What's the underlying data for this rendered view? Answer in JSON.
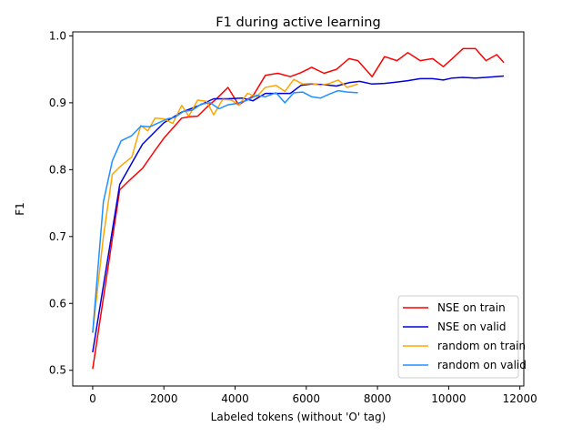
{
  "chart_data": {
    "type": "line",
    "title": "F1 during active learning",
    "xlabel": "Labeled tokens (without 'O' tag)",
    "ylabel": "F1",
    "xlim": [
      -560,
      12110
    ],
    "ylim": [
      0.4765,
      1.006
    ],
    "xticks": [
      0,
      2000,
      4000,
      6000,
      8000,
      10000,
      12000
    ],
    "xtick_labels": [
      "0",
      "2000",
      "4000",
      "6000",
      "8000",
      "10000",
      "12000"
    ],
    "yticks": [
      0.5,
      0.6,
      0.7,
      0.8,
      0.9,
      1.0
    ],
    "ytick_labels": [
      "0.5",
      "0.6",
      "0.7",
      "0.8",
      "0.9",
      "1.0"
    ],
    "grid": false,
    "legend_position": "lower-right",
    "series": [
      {
        "name": "NSE on train",
        "color": "#ff0000",
        "x": [
          0,
          760,
          1050,
          1400,
          1700,
          2000,
          2250,
          2500,
          2700,
          2950,
          3200,
          3500,
          3800,
          4100,
          4500,
          4850,
          5200,
          5550,
          5850,
          6150,
          6500,
          6850,
          7200,
          7450,
          7850,
          8200,
          8550,
          8850,
          9200,
          9550,
          9850,
          10100,
          10400,
          10750,
          11050,
          11350,
          11550
        ],
        "y": [
          0.502,
          0.77,
          0.785,
          0.802,
          0.825,
          0.847,
          0.862,
          0.877,
          0.879,
          0.88,
          0.893,
          0.907,
          0.923,
          0.897,
          0.91,
          0.941,
          0.944,
          0.939,
          0.945,
          0.953,
          0.944,
          0.95,
          0.966,
          0.963,
          0.939,
          0.969,
          0.963,
          0.975,
          0.963,
          0.966,
          0.954,
          0.966,
          0.981,
          0.981,
          0.963,
          0.972,
          0.96
        ]
      },
      {
        "name": "NSE on valid",
        "color": "#0000dd",
        "x": [
          0,
          760,
          1400,
          2000,
          2500,
          2950,
          3400,
          3800,
          4200,
          4500,
          4850,
          5200,
          5550,
          5850,
          6150,
          6500,
          6850,
          7200,
          7500,
          7850,
          8200,
          8550,
          8850,
          9200,
          9550,
          9850,
          10100,
          10400,
          10750,
          11050,
          11550
        ],
        "y": [
          0.527,
          0.778,
          0.838,
          0.87,
          0.886,
          0.895,
          0.906,
          0.906,
          0.907,
          0.903,
          0.914,
          0.914,
          0.914,
          0.926,
          0.928,
          0.927,
          0.925,
          0.93,
          0.932,
          0.928,
          0.929,
          0.931,
          0.933,
          0.936,
          0.936,
          0.934,
          0.937,
          0.938,
          0.937,
          0.938,
          0.94
        ]
      },
      {
        "name": "random on train",
        "color": "#ffa500",
        "x": [
          0,
          300,
          550,
          800,
          1100,
          1350,
          1550,
          1750,
          2000,
          2250,
          2500,
          2700,
          2950,
          3200,
          3400,
          3650,
          3900,
          4100,
          4350,
          4600,
          4850,
          5150,
          5400,
          5650,
          5900,
          6150,
          6400,
          6650,
          6900,
          7150,
          7450
        ],
        "y": [
          0.556,
          0.7,
          0.793,
          0.806,
          0.819,
          0.866,
          0.858,
          0.877,
          0.876,
          0.869,
          0.896,
          0.88,
          0.904,
          0.902,
          0.882,
          0.905,
          0.904,
          0.896,
          0.914,
          0.909,
          0.923,
          0.926,
          0.917,
          0.935,
          0.928,
          0.929,
          0.926,
          0.929,
          0.934,
          0.923,
          0.928
        ]
      },
      {
        "name": "random on valid",
        "color": "#1e90ff",
        "x": [
          0,
          300,
          550,
          800,
          1100,
          1350,
          1600,
          1850,
          2100,
          2300,
          2550,
          2800,
          3050,
          3300,
          3550,
          3800,
          4050,
          4300,
          4600,
          4850,
          5150,
          5400,
          5650,
          5900,
          6150,
          6400,
          6650,
          6900,
          7150,
          7450
        ],
        "y": [
          0.556,
          0.752,
          0.813,
          0.843,
          0.851,
          0.865,
          0.864,
          0.87,
          0.876,
          0.878,
          0.887,
          0.889,
          0.898,
          0.9,
          0.891,
          0.897,
          0.899,
          0.903,
          0.911,
          0.909,
          0.915,
          0.9,
          0.915,
          0.916,
          0.909,
          0.907,
          0.913,
          0.918,
          0.916,
          0.915
        ]
      }
    ]
  }
}
